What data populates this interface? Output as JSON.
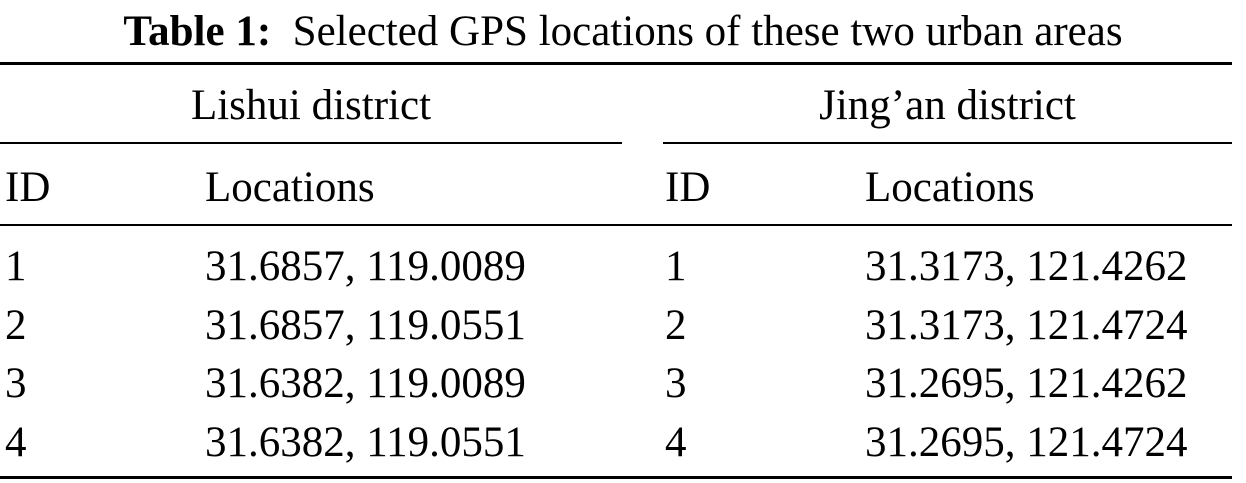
{
  "caption": {
    "label": "Table 1:",
    "text": "Selected GPS locations of these two urban areas"
  },
  "groups": [
    {
      "name": "Lishui district",
      "columns": [
        "ID",
        "Locations"
      ],
      "rows": [
        [
          "1",
          "31.6857, 119.0089"
        ],
        [
          "2",
          "31.6857, 119.0551"
        ],
        [
          "3",
          "31.6382, 119.0089"
        ],
        [
          "4",
          "31.6382, 119.0551"
        ]
      ]
    },
    {
      "name": "Jing’an district",
      "columns": [
        "ID",
        "Locations"
      ],
      "rows": [
        [
          "1",
          "31.3173, 121.4262"
        ],
        [
          "2",
          "31.3173, 121.4724"
        ],
        [
          "3",
          "31.2695, 121.4262"
        ],
        [
          "4",
          "31.2695, 121.4724"
        ]
      ]
    }
  ]
}
